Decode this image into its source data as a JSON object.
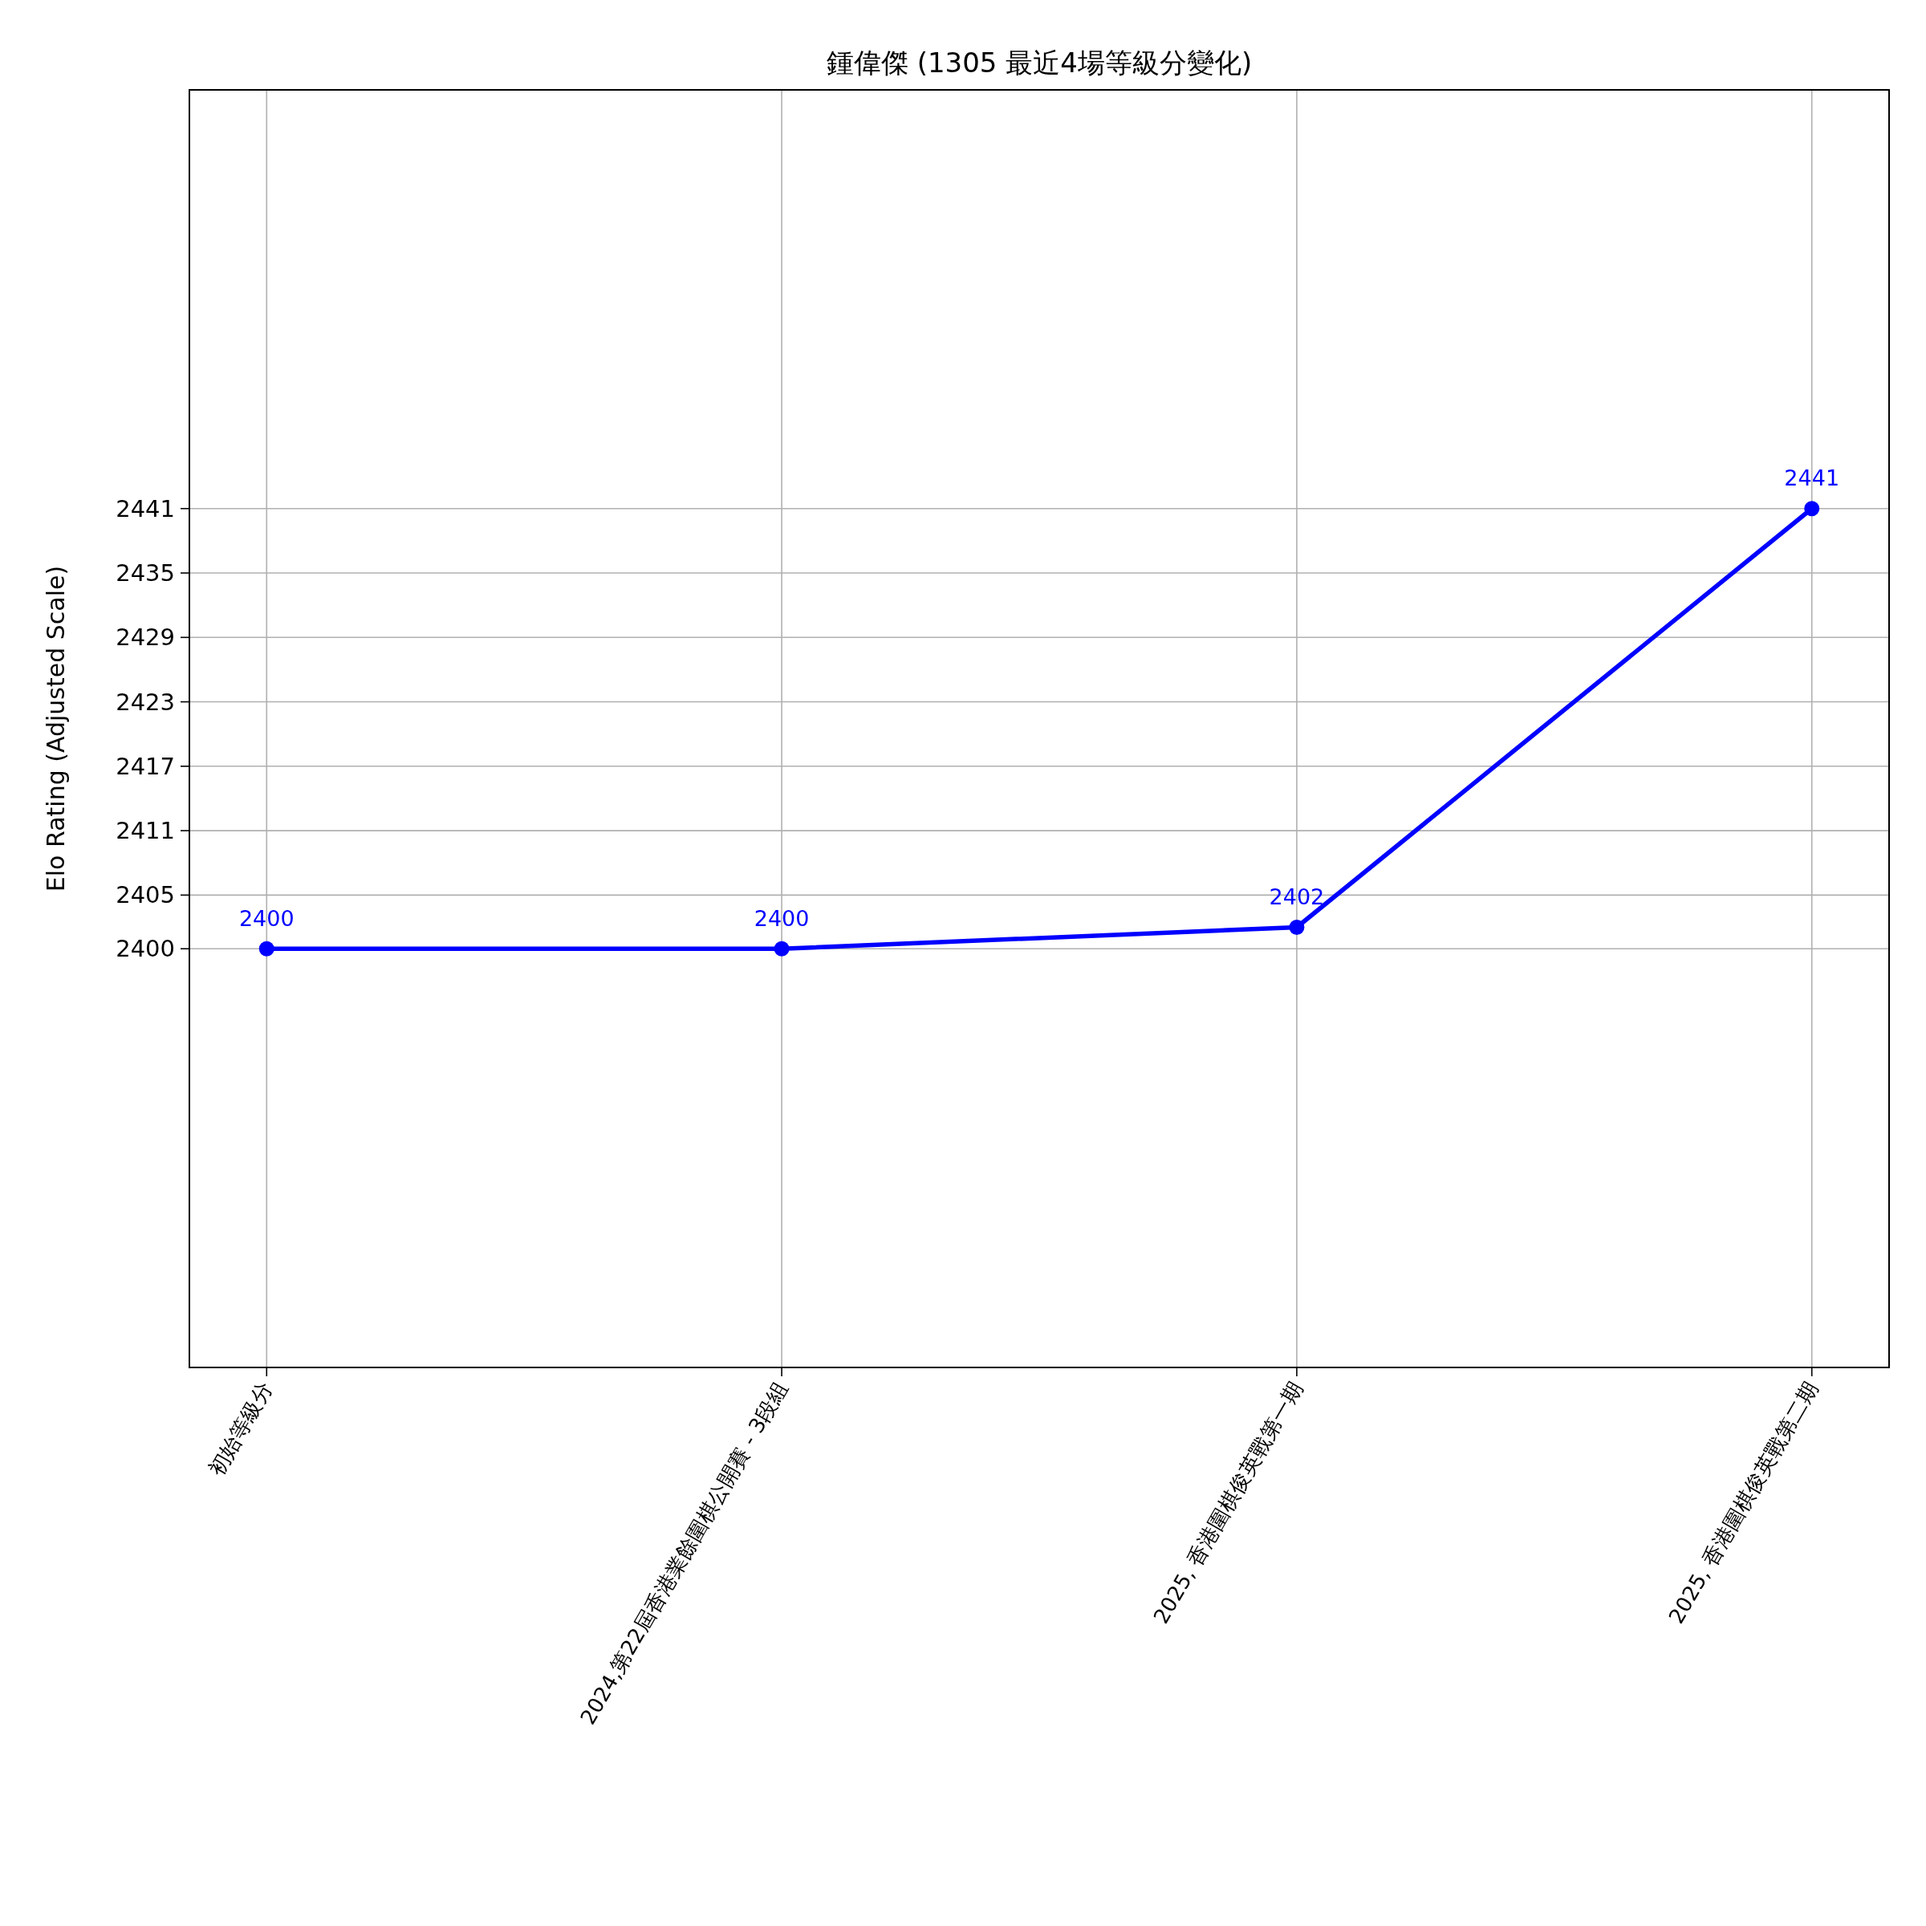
{
  "chart_data": {
    "type": "line",
    "title": "鍾偉傑 (1305 最近4場等級分變化)",
    "ylabel": "Elo Rating (Adjusted Scale)",
    "categories": [
      "初始等級分",
      "2024,第22屆香港業餘圍棋公開賽 - 3段組",
      "2025, 香港圍棋俊英戰第一期",
      "2025, 香港圍棋俊英戰第二期"
    ],
    "values": [
      2400,
      2400,
      2402,
      2441
    ],
    "data_labels": true,
    "color": "#0000ff",
    "ylim": [
      2361,
      2480
    ],
    "yticks": [
      2400,
      2405,
      2411,
      2417,
      2423,
      2429,
      2435,
      2441
    ],
    "grid": true,
    "marker": "circle",
    "line_style": "solid"
  }
}
